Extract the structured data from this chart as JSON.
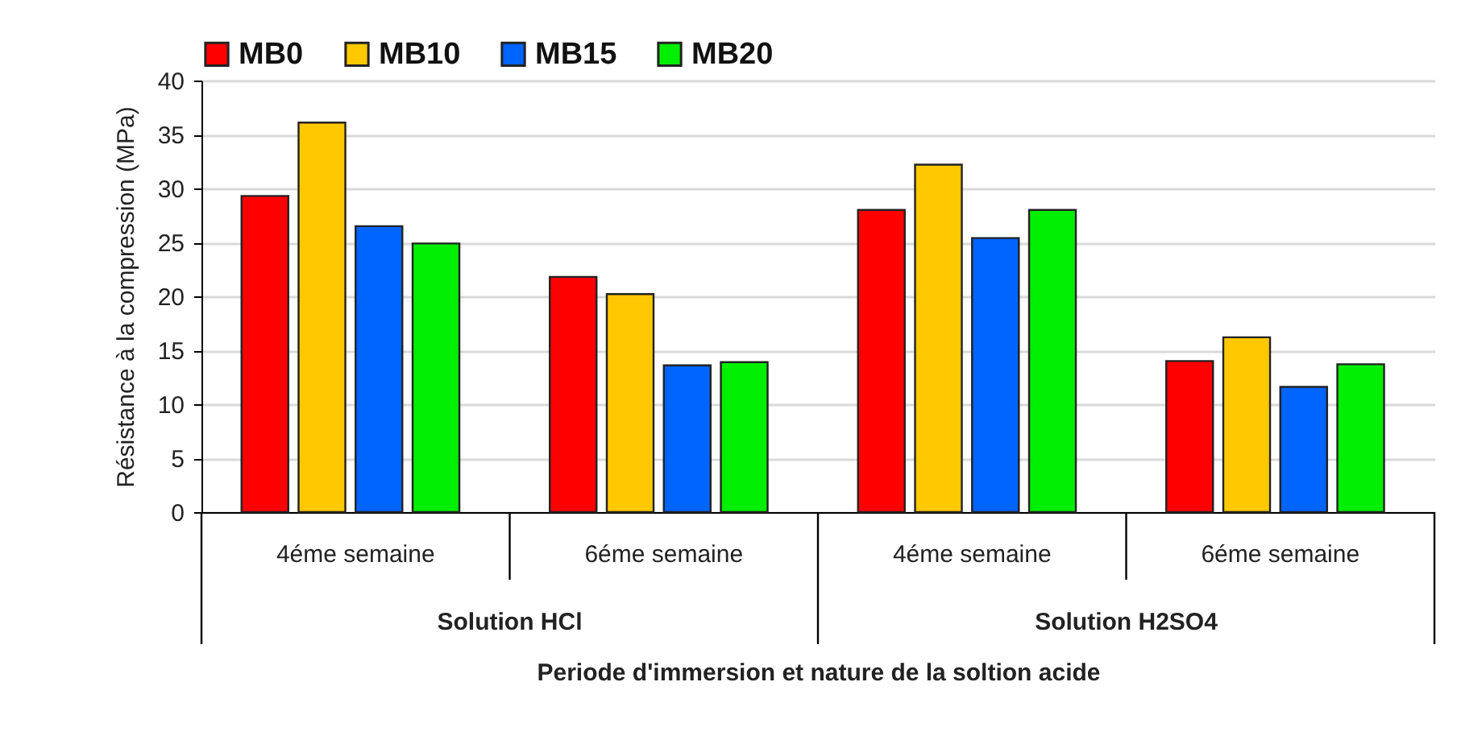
{
  "chart_data": {
    "type": "bar",
    "xlabel": "Periode d'immersion et nature de la soltion acide",
    "ylabel": "Résistance à la compression (MPa)",
    "categories": [
      "4éme semaine",
      "6éme semaine",
      "4éme semaine",
      "6éme semaine"
    ],
    "annotations": [
      "Solution HCl",
      "Solution H2SO4"
    ],
    "series": [
      {
        "name": "MB0",
        "color": "#ff0000",
        "values": [
          29.3,
          21.8,
          28.0,
          14.0
        ]
      },
      {
        "name": "MB10",
        "color": "#ffc800",
        "values": [
          36.1,
          20.2,
          32.2,
          16.2
        ]
      },
      {
        "name": "MB15",
        "color": "#0064ff",
        "values": [
          26.5,
          13.6,
          25.4,
          11.6
        ]
      },
      {
        "name": "MB20",
        "color": "#00ee00",
        "values": [
          24.9,
          13.9,
          28.0,
          13.7
        ]
      }
    ],
    "ylim": [
      0,
      40
    ],
    "yticks": [
      0,
      5,
      10,
      15,
      20,
      25,
      30,
      35,
      40
    ],
    "grid": "y",
    "legend": "top"
  }
}
